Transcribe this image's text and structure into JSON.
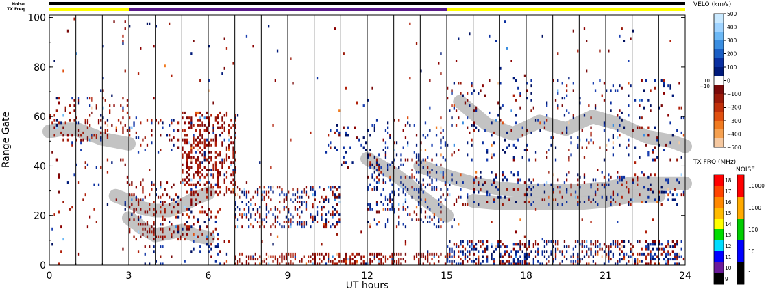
{
  "chart_data": {
    "type": "scatter",
    "xlabel": "UT hours",
    "ylabel": "Range Gate",
    "xlim": [
      0,
      24
    ],
    "ylim": [
      0,
      101
    ],
    "x_ticks": [
      "0",
      "3",
      "6",
      "9",
      "12",
      "15",
      "18",
      "21",
      "24"
    ],
    "y_ticks": [
      "0",
      "20",
      "40",
      "60",
      "80",
      "100"
    ],
    "status_bars": {
      "noise_label": "Noise",
      "txfreq_label": "TX Freq",
      "txfreq_segments": [
        {
          "start": 0,
          "end": 3,
          "color": "#ffff00"
        },
        {
          "start": 3,
          "end": 15,
          "color": "#5a1a8a"
        },
        {
          "start": 15,
          "end": 24,
          "color": "#ffff00"
        }
      ]
    },
    "scan_boundaries_ut": [
      1,
      2,
      3,
      4,
      5,
      6,
      7,
      8,
      9,
      10,
      11,
      12,
      13,
      14,
      15,
      16,
      17,
      18,
      19,
      20,
      21,
      22,
      23
    ],
    "scatter_regions": [
      {
        "label": "ground scatter",
        "color": "#c0c0c0",
        "points": [
          [
            0,
            54
          ],
          [
            0.5,
            55
          ],
          [
            1,
            55
          ],
          [
            1.5,
            53
          ],
          [
            2,
            51
          ],
          [
            2.5,
            50
          ],
          [
            3,
            49
          ]
        ]
      },
      {
        "label": "ground scatter",
        "color": "#c0c0c0",
        "points": [
          [
            2.5,
            28
          ],
          [
            3,
            26
          ],
          [
            3.5,
            23
          ],
          [
            4,
            22
          ],
          [
            4.5,
            22
          ],
          [
            5,
            24
          ],
          [
            5.5,
            27
          ],
          [
            6,
            29
          ]
        ]
      },
      {
        "label": "ground scatter",
        "color": "#c0c0c0",
        "points": [
          [
            3,
            19
          ],
          [
            3.5,
            15
          ],
          [
            4,
            12
          ],
          [
            4.5,
            13
          ],
          [
            5,
            14
          ],
          [
            5.5,
            12
          ],
          [
            6,
            11
          ]
        ]
      },
      {
        "label": "ground scatter",
        "color": "#c0c0c0",
        "points": [
          [
            12,
            43
          ],
          [
            12.5,
            40
          ],
          [
            13,
            37
          ],
          [
            13.5,
            33
          ],
          [
            14,
            28
          ],
          [
            14.5,
            24
          ],
          [
            15,
            20
          ]
        ]
      },
      {
        "label": "ground scatter",
        "color": "#c0c0c0",
        "points": [
          [
            14,
            40
          ],
          [
            15,
            36
          ],
          [
            16,
            33
          ],
          [
            17,
            31
          ],
          [
            18,
            30
          ],
          [
            19,
            30
          ],
          [
            20,
            30
          ],
          [
            21,
            31
          ],
          [
            22,
            33
          ],
          [
            23,
            33
          ],
          [
            24,
            33
          ]
        ]
      },
      {
        "label": "ground scatter",
        "color": "#c0c0c0",
        "points": [
          [
            16,
            26
          ],
          [
            17,
            25
          ],
          [
            18,
            25
          ],
          [
            19,
            25
          ],
          [
            20,
            25
          ],
          [
            21,
            26
          ],
          [
            22,
            28
          ],
          [
            23,
            28
          ]
        ]
      },
      {
        "label": "ground scatter",
        "color": "#c0c0c0",
        "points": [
          [
            15.5,
            66
          ],
          [
            16.5,
            57
          ],
          [
            17.5,
            53
          ],
          [
            18.5,
            58
          ],
          [
            19.5,
            55
          ],
          [
            20.5,
            60
          ],
          [
            21.5,
            57
          ],
          [
            22.5,
            52
          ],
          [
            23.5,
            50
          ],
          [
            24,
            48
          ]
        ]
      }
    ],
    "velocity_bands": [
      {
        "x0": 0.0,
        "x1": 3.0,
        "y0": 50,
        "y1": 68,
        "density": 0.15,
        "bias": 0.8
      },
      {
        "x0": 0.0,
        "x1": 3.0,
        "y0": 20,
        "y1": 45,
        "density": 0.04,
        "bias": 0.6
      },
      {
        "x0": 0.0,
        "x1": 3.0,
        "y0": 0,
        "y1": 100,
        "density": 0.012,
        "bias": 0.5
      },
      {
        "x0": 3.0,
        "x1": 6.5,
        "y0": 10,
        "y1": 34,
        "density": 0.22,
        "bias": 0.85
      },
      {
        "x0": 3.0,
        "x1": 6.0,
        "y0": 45,
        "y1": 60,
        "density": 0.12,
        "bias": 0.5
      },
      {
        "x0": 5.0,
        "x1": 7.1,
        "y0": 28,
        "y1": 62,
        "density": 0.35,
        "bias": 0.95
      },
      {
        "x0": 3.5,
        "x1": 7.0,
        "y0": 0,
        "y1": 10,
        "density": 0.05,
        "bias": 0.2
      },
      {
        "x0": 7.0,
        "x1": 11.0,
        "y0": 15,
        "y1": 32,
        "density": 0.32,
        "bias": 0.5
      },
      {
        "x0": 7.0,
        "x1": 15.0,
        "y0": 0,
        "y1": 5,
        "density": 0.45,
        "bias": 0.95
      },
      {
        "x0": 10.5,
        "x1": 15.0,
        "y0": 40,
        "y1": 58,
        "density": 0.12,
        "bias": 0.2
      },
      {
        "x0": 12.0,
        "x1": 15.0,
        "y0": 15,
        "y1": 45,
        "density": 0.22,
        "bias": 0.25
      },
      {
        "x0": 15.0,
        "x1": 24.0,
        "y0": 0,
        "y1": 10,
        "density": 0.4,
        "bias": 0.45
      },
      {
        "x0": 15.0,
        "x1": 24.0,
        "y0": 24,
        "y1": 38,
        "density": 0.16,
        "bias": 0.35
      },
      {
        "x0": 15.0,
        "x1": 24.0,
        "y0": 42,
        "y1": 75,
        "density": 0.08,
        "bias": 0.4
      },
      {
        "x0": 3.0,
        "x1": 24.0,
        "y0": 0,
        "y1": 100,
        "density": 0.01,
        "bias": 0.5
      }
    ],
    "velo_legend": {
      "title": "VELO (km/s)",
      "labels": [
        "500",
        "400",
        "300",
        "200",
        "100",
        "0",
        "−100",
        "−200",
        "−300",
        "−400",
        "−500"
      ],
      "threshold_labels": [
        "10",
        "−10"
      ],
      "colors": [
        "#c9e9ff",
        "#9fd3ff",
        "#6cb8f5",
        "#3a8de0",
        "#1a5ec4",
        "#0a2fa0",
        "#001a7a",
        "#ffffff",
        "#7a0a0a",
        "#9a1a0a",
        "#c0300a",
        "#e05010",
        "#f07a20",
        "#f5a050",
        "#f5c8a0"
      ]
    },
    "txfreq_legend": {
      "title": "TX FRQ (MHz)",
      "labels": [
        "18",
        "17",
        "16",
        "15",
        "14",
        "13",
        "12",
        "11",
        "10",
        "9"
      ],
      "colors": [
        "#ff0000",
        "#ff4400",
        "#ff8800",
        "#ffbb00",
        "#ffff00",
        "#00dd00",
        "#00ddff",
        "#0000ff",
        "#6a1a9a",
        "#000000"
      ]
    },
    "noise_legend": {
      "title": "NOISE",
      "labels": [
        "10000",
        "1000",
        "100",
        "10",
        "1"
      ],
      "colors": [
        "#ff0000",
        "#ffaa00",
        "#00cc00",
        "#0000ff",
        "#000000"
      ]
    }
  }
}
